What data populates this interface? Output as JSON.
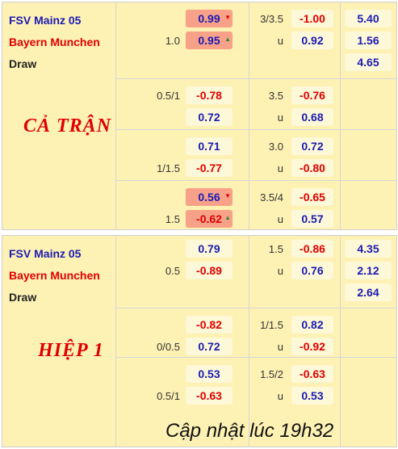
{
  "teams": {
    "home": "FSV Mainz 05",
    "away": "Bayern Munchen",
    "draw": "Draw"
  },
  "periods": {
    "full": "CẢ TRẬN",
    "half": "HIỆP 1"
  },
  "full": {
    "lines": [
      {
        "hcp_home": "",
        "hcp_away": "1.0",
        "home": "0.99",
        "home_move": "down",
        "away": "0.95",
        "away_move": "up",
        "ou_line": "3/3.5",
        "over": "-1.00",
        "under_label": "u",
        "under": "0.92"
      },
      {
        "hcp_home": "0.5/1",
        "hcp_away": "",
        "home": "-0.78",
        "away": "0.72",
        "ou_line": "3.5",
        "over": "-0.76",
        "under_label": "u",
        "under": "0.68"
      },
      {
        "hcp_home": "",
        "hcp_away": "1/1.5",
        "home": "0.71",
        "away": "-0.77",
        "ou_line": "3.0",
        "over": "0.72",
        "under_label": "u",
        "under": "-0.80"
      },
      {
        "hcp_home": "",
        "hcp_away": "1.5",
        "home": "0.56",
        "home_move": "down",
        "away": "-0.62",
        "away_move": "up",
        "ou_line": "3.5/4",
        "over": "-0.65",
        "under_label": "u",
        "under": "0.57"
      }
    ],
    "x12": {
      "home": "5.40",
      "away": "1.56",
      "draw": "4.65"
    }
  },
  "half": {
    "lines": [
      {
        "hcp_home": "",
        "hcp_away": "0.5",
        "home": "0.79",
        "away": "-0.89",
        "ou_line": "1.5",
        "over": "-0.86",
        "under_label": "u",
        "under": "0.76"
      },
      {
        "hcp_home": "",
        "hcp_away": "0/0.5",
        "home": "-0.82",
        "away": "0.72",
        "ou_line": "1/1.5",
        "over": "0.82",
        "under_label": "u",
        "under": "-0.92"
      },
      {
        "hcp_home": "",
        "hcp_away": "0.5/1",
        "home": "0.53",
        "away": "-0.63",
        "ou_line": "1.5/2",
        "over": "-0.63",
        "under_label": "u",
        "under": "0.53"
      }
    ],
    "x12": {
      "home": "4.35",
      "away": "2.12",
      "draw": "2.64"
    }
  },
  "footer": {
    "updated": "Cập nhật lúc 19h32"
  },
  "colors": {
    "panel": "#fdf1b4",
    "cell": "#fdf8d7",
    "highlight": "#f7a189",
    "positive": "#1b1bb3",
    "negative": "#e00000",
    "up": "#2e8b2e",
    "down": "#e00000"
  }
}
